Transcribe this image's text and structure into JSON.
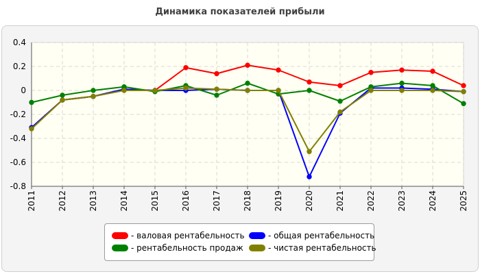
{
  "chart_data": {
    "type": "line",
    "title": "Динамика показателей прибыли",
    "xlabel": "",
    "ylabel": "",
    "categories": [
      "2011",
      "2012",
      "2013",
      "2014",
      "2015",
      "2016",
      "2017",
      "2018",
      "2019",
      "2020",
      "2021",
      "2022",
      "2023",
      "2024",
      "2025"
    ],
    "ylim": [
      -0.8,
      0.4
    ],
    "yticks": [
      0.4,
      0.2,
      0,
      -0.2,
      -0.4,
      -0.6,
      -0.8
    ],
    "ytick_labels": [
      "0.4",
      "0.2",
      "0",
      "-0.2",
      "-0.4",
      "-0.6",
      "-0.8"
    ],
    "grid": true,
    "legend_position": "bottom",
    "series": [
      {
        "name": "- валовая рентабельность",
        "color": "#ff0000",
        "values": [
          -0.31,
          -0.08,
          -0.05,
          0.01,
          0.0,
          0.19,
          0.14,
          0.21,
          0.17,
          0.07,
          0.04,
          0.15,
          0.17,
          0.16,
          0.04
        ]
      },
      {
        "name": "- общая рентабельность",
        "color": "#0000ff",
        "values": [
          -0.31,
          -0.08,
          -0.05,
          0.01,
          0.0,
          0.0,
          0.01,
          0.0,
          0.0,
          -0.72,
          -0.19,
          0.02,
          0.02,
          0.01,
          -0.01
        ]
      },
      {
        "name": "- рентабельность продаж",
        "color": "#008000",
        "values": [
          -0.1,
          -0.04,
          0.0,
          0.03,
          -0.01,
          0.04,
          -0.04,
          0.06,
          -0.03,
          0.0,
          -0.09,
          0.03,
          0.06,
          0.04,
          -0.11
        ]
      },
      {
        "name": "- чистая рентабельность",
        "color": "#808000",
        "values": [
          -0.32,
          -0.08,
          -0.05,
          0.0,
          0.0,
          0.02,
          0.01,
          0.0,
          0.0,
          -0.51,
          -0.18,
          0.0,
          0.0,
          0.0,
          -0.01
        ]
      }
    ]
  }
}
